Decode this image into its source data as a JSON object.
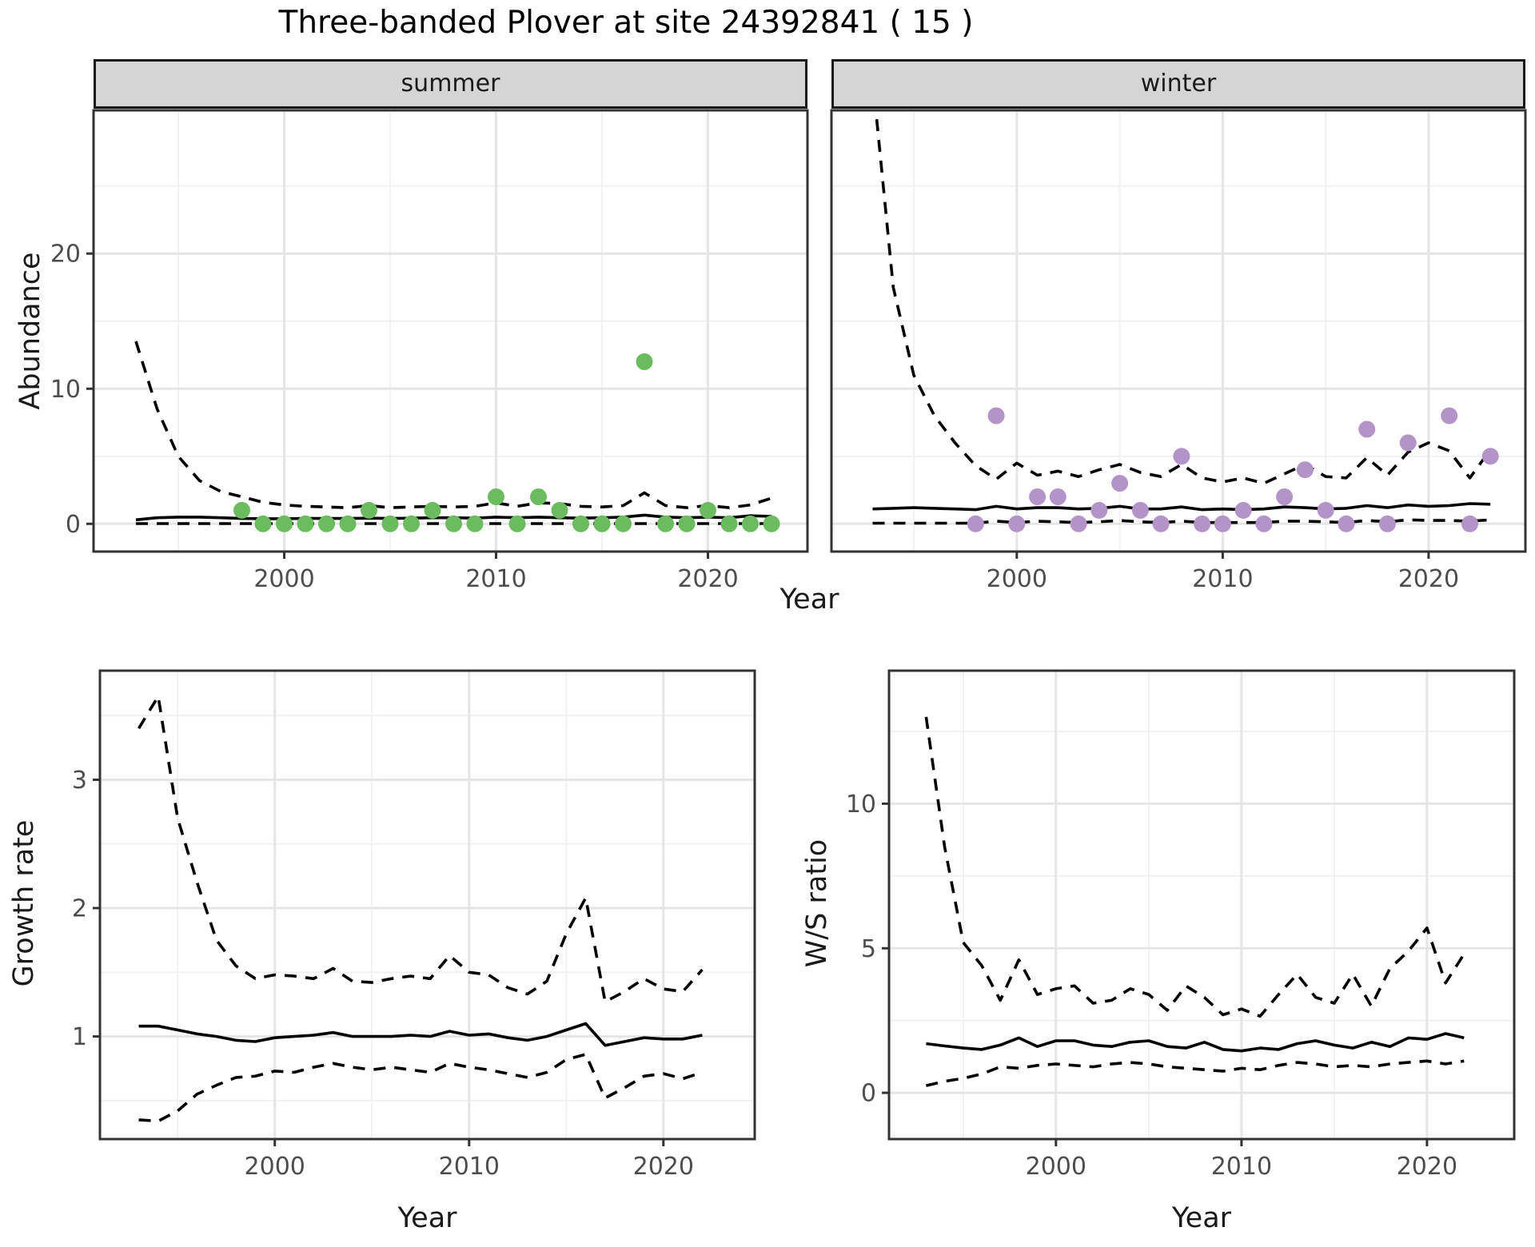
{
  "title": "Three-banded Plover at site 24392841 ( 15 )",
  "labels": {
    "facet_summer": "summer",
    "facet_winter": "winter",
    "y_abundance": "Abundance",
    "y_growth": "Growth rate",
    "y_ws": "W/S ratio",
    "x_year": "Year"
  },
  "colors": {
    "summer_point": "#6ABC5E",
    "winter_point": "#B493C8",
    "line": "#000000",
    "grid_major": "#e5e5e5",
    "grid_minor": "#f0f0f0",
    "panel_border": "#333333",
    "strip_bg": "#d5d5d5",
    "axis_text": "#4d4d4d"
  },
  "chart_data": [
    {
      "type": "line",
      "name": "abundance-summer",
      "title": "summer",
      "xlabel": "Year",
      "ylabel": "Abundance",
      "x_range": [
        1991,
        2024.7
      ],
      "y_range": [
        -2.05,
        30.6
      ],
      "x_ticks": [
        2000,
        2010,
        2020
      ],
      "x_minor": [
        1995,
        2005,
        2015
      ],
      "y_ticks": [
        0,
        10,
        20
      ],
      "y_minor": [
        5,
        15,
        25
      ],
      "show_y_labels": true,
      "series_start_year": 1993,
      "fit": [
        0.3,
        0.45,
        0.5,
        0.5,
        0.45,
        0.4,
        0.38,
        0.38,
        0.4,
        0.4,
        0.4,
        0.42,
        0.4,
        0.42,
        0.45,
        0.45,
        0.42,
        0.5,
        0.45,
        0.5,
        0.45,
        0.42,
        0.45,
        0.5,
        0.65,
        0.5,
        0.45,
        0.5,
        0.45,
        0.6,
        0.55
      ],
      "ci_upper": [
        13.5,
        8.5,
        5.0,
        3.2,
        2.4,
        2.0,
        1.6,
        1.4,
        1.3,
        1.25,
        1.2,
        1.35,
        1.2,
        1.25,
        1.3,
        1.25,
        1.3,
        1.55,
        1.3,
        1.55,
        1.5,
        1.3,
        1.25,
        1.35,
        2.3,
        1.35,
        1.2,
        1.35,
        1.2,
        1.4,
        1.9
      ],
      "ci_lower": [
        0.02,
        0.02,
        0.02,
        0.02,
        0.02,
        0.02,
        0.02,
        0.02,
        0.02,
        0.02,
        0.02,
        0.02,
        0.02,
        0.02,
        0.02,
        0.02,
        0.02,
        0.02,
        0.02,
        0.02,
        0.02,
        0.02,
        0.02,
        0.02,
        0.02,
        0.02,
        0.02,
        0.02,
        0.02,
        0.02,
        0.02
      ],
      "point_years": [
        1998,
        1999,
        2000,
        2001,
        2002,
        2003,
        2004,
        2005,
        2006,
        2007,
        2008,
        2009,
        2010,
        2011,
        2012,
        2013,
        2014,
        2015,
        2016,
        2017,
        2018,
        2019,
        2020,
        2021,
        2022,
        2023
      ],
      "point_values": [
        1,
        0,
        0,
        0,
        0,
        0,
        1,
        0,
        0,
        1,
        0,
        0,
        2,
        0,
        2,
        1,
        0,
        0,
        0,
        12,
        0,
        0,
        1,
        0,
        0,
        0
      ],
      "point_color": "#6ABC5E"
    },
    {
      "type": "line",
      "name": "abundance-winter",
      "title": "winter",
      "xlabel": "Year",
      "ylabel": "Abundance",
      "x_range": [
        1991,
        2024.7
      ],
      "y_range": [
        -2.05,
        30.6
      ],
      "x_ticks": [
        2000,
        2010,
        2020
      ],
      "x_minor": [
        1995,
        2005,
        2015
      ],
      "y_ticks": [
        0,
        10,
        20
      ],
      "y_minor": [
        5,
        15,
        25
      ],
      "show_y_labels": false,
      "series_start_year": 1993,
      "fit": [
        1.1,
        1.15,
        1.2,
        1.15,
        1.1,
        1.05,
        1.3,
        1.1,
        1.2,
        1.2,
        1.1,
        1.15,
        1.3,
        1.1,
        1.1,
        1.25,
        1.05,
        1.1,
        1.05,
        1.1,
        1.25,
        1.2,
        1.1,
        1.15,
        1.35,
        1.2,
        1.4,
        1.3,
        1.35,
        1.5,
        1.45
      ],
      "ci_upper": [
        33,
        17.5,
        11,
        8,
        6,
        4.3,
        3.3,
        4.5,
        3.6,
        3.9,
        3.5,
        4.0,
        4.4,
        3.8,
        3.5,
        4.4,
        3.4,
        3.1,
        3.4,
        3.0,
        3.7,
        4.4,
        3.5,
        3.4,
        4.9,
        3.6,
        5.3,
        6.0,
        5.4,
        3.4,
        5.5
      ],
      "ci_lower": [
        0.05,
        0.05,
        0.05,
        0.05,
        0.05,
        0.05,
        0.2,
        0.1,
        0.2,
        0.15,
        0.1,
        0.15,
        0.25,
        0.15,
        0.1,
        0.2,
        0.1,
        0.1,
        0.1,
        0.1,
        0.2,
        0.2,
        0.15,
        0.1,
        0.25,
        0.15,
        0.3,
        0.25,
        0.25,
        0.2,
        0.3
      ],
      "point_years": [
        1998,
        1999,
        2000,
        2001,
        2002,
        2003,
        2004,
        2005,
        2006,
        2007,
        2008,
        2009,
        2010,
        2011,
        2012,
        2013,
        2014,
        2015,
        2016,
        2017,
        2018,
        2019,
        2021,
        2022,
        2023
      ],
      "point_values": [
        0,
        8,
        0,
        2,
        2,
        0,
        1,
        3,
        1,
        0,
        5,
        0,
        0,
        1,
        0,
        2,
        4,
        1,
        0,
        7,
        0,
        6,
        8,
        0,
        5
      ],
      "point_color": "#B493C8"
    },
    {
      "type": "line",
      "name": "growth-rate",
      "title": "Growth rate",
      "xlabel": "Year",
      "ylabel": "Growth rate",
      "x_range": [
        1991,
        2024.7
      ],
      "y_range": [
        0.2,
        3.85
      ],
      "x_ticks": [
        2000,
        2010,
        2020
      ],
      "x_minor": [
        1995,
        2005,
        2015
      ],
      "y_ticks": [
        1,
        2,
        3
      ],
      "y_minor": [
        0.5,
        1.5,
        2.5,
        3.5
      ],
      "show_y_labels": true,
      "series_start_year": 1993,
      "fit": [
        1.08,
        1.08,
        1.05,
        1.02,
        1.0,
        0.97,
        0.96,
        0.99,
        1.0,
        1.01,
        1.03,
        1.0,
        1.0,
        1.0,
        1.01,
        1.0,
        1.04,
        1.01,
        1.02,
        0.99,
        0.97,
        1.0,
        1.05,
        1.1,
        0.93,
        0.96,
        0.99,
        0.98,
        0.98,
        1.01
      ],
      "ci_upper": [
        3.4,
        3.65,
        2.7,
        2.2,
        1.75,
        1.55,
        1.45,
        1.48,
        1.47,
        1.45,
        1.53,
        1.43,
        1.42,
        1.45,
        1.47,
        1.45,
        1.63,
        1.5,
        1.48,
        1.38,
        1.33,
        1.43,
        1.8,
        2.08,
        1.27,
        1.35,
        1.45,
        1.37,
        1.35,
        1.52
      ],
      "ci_lower": [
        0.35,
        0.34,
        0.42,
        0.55,
        0.62,
        0.68,
        0.69,
        0.73,
        0.72,
        0.76,
        0.79,
        0.76,
        0.74,
        0.76,
        0.74,
        0.72,
        0.79,
        0.76,
        0.74,
        0.71,
        0.68,
        0.72,
        0.82,
        0.86,
        0.52,
        0.6,
        0.69,
        0.71,
        0.67,
        0.72
      ],
      "point_years": [],
      "point_values": [],
      "point_color": "#000000"
    },
    {
      "type": "line",
      "name": "ws-ratio",
      "title": "W/S ratio",
      "xlabel": "Year",
      "ylabel": "W/S ratio",
      "x_range": [
        1991,
        2024.7
      ],
      "y_range": [
        -1.6,
        14.6
      ],
      "x_ticks": [
        2000,
        2010,
        2020
      ],
      "x_minor": [
        1995,
        2005,
        2015
      ],
      "y_ticks": [
        0,
        5,
        10
      ],
      "y_minor": [
        2.5,
        7.5,
        12.5
      ],
      "show_y_labels": true,
      "series_start_year": 1993,
      "fit": [
        1.7,
        1.62,
        1.55,
        1.5,
        1.65,
        1.9,
        1.6,
        1.8,
        1.8,
        1.65,
        1.6,
        1.75,
        1.8,
        1.6,
        1.55,
        1.75,
        1.5,
        1.45,
        1.55,
        1.5,
        1.7,
        1.8,
        1.65,
        1.55,
        1.75,
        1.6,
        1.9,
        1.85,
        2.05,
        1.9
      ],
      "ci_upper": [
        13.0,
        8.5,
        5.2,
        4.4,
        3.2,
        4.6,
        3.4,
        3.6,
        3.7,
        3.1,
        3.2,
        3.6,
        3.4,
        2.85,
        3.7,
        3.3,
        2.7,
        2.9,
        2.65,
        3.4,
        4.1,
        3.3,
        3.1,
        4.1,
        3.0,
        4.3,
        4.9,
        5.7,
        3.8,
        4.8
      ],
      "ci_lower": [
        0.25,
        0.4,
        0.5,
        0.65,
        0.9,
        0.85,
        0.95,
        1.0,
        0.95,
        0.9,
        1.0,
        1.05,
        1.0,
        0.9,
        0.85,
        0.8,
        0.75,
        0.85,
        0.8,
        0.95,
        1.05,
        1.0,
        0.9,
        0.95,
        0.9,
        1.0,
        1.05,
        1.1,
        1.0,
        1.1
      ],
      "point_years": [],
      "point_values": [],
      "point_color": "#000000"
    }
  ]
}
